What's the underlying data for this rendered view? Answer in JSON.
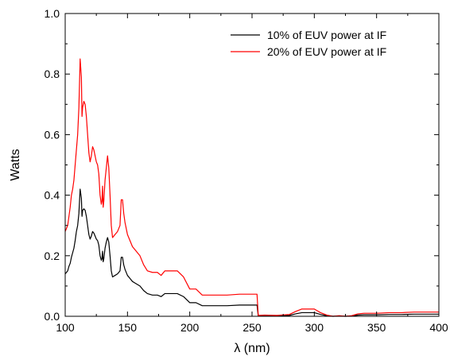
{
  "chart_data": {
    "type": "line",
    "xlabel": "λ (nm)",
    "ylabel": "Watts",
    "xlim": [
      100,
      400
    ],
    "ylim": [
      0.0,
      1.0
    ],
    "x_ticks": [
      100,
      150,
      200,
      250,
      300,
      350,
      400
    ],
    "y_ticks": [
      0.0,
      0.2,
      0.4,
      0.6,
      0.8,
      1.0
    ],
    "x_tick_labels": [
      "100",
      "150",
      "200",
      "250",
      "300",
      "350",
      "400"
    ],
    "y_tick_labels": [
      "0.0",
      "0.2",
      "0.4",
      "0.6",
      "0.8",
      "1.0"
    ],
    "grid": false,
    "legend_position": "top-right",
    "series": [
      {
        "name": "10% of EUV power at IF",
        "color": "#000000",
        "points": [
          [
            100,
            0.14
          ],
          [
            101,
            0.145
          ],
          [
            102,
            0.15
          ],
          [
            103,
            0.165
          ],
          [
            104,
            0.175
          ],
          [
            105,
            0.195
          ],
          [
            106,
            0.21
          ],
          [
            107,
            0.225
          ],
          [
            108,
            0.25
          ],
          [
            109,
            0.28
          ],
          [
            110,
            0.3
          ],
          [
            111,
            0.34
          ],
          [
            112,
            0.42
          ],
          [
            113,
            0.39
          ],
          [
            113.5,
            0.33
          ],
          [
            114,
            0.35
          ],
          [
            115,
            0.355
          ],
          [
            116,
            0.35
          ],
          [
            117,
            0.33
          ],
          [
            118,
            0.3
          ],
          [
            119,
            0.27
          ],
          [
            120,
            0.255
          ],
          [
            121,
            0.265
          ],
          [
            122,
            0.28
          ],
          [
            123,
            0.275
          ],
          [
            124,
            0.265
          ],
          [
            125,
            0.255
          ],
          [
            126,
            0.25
          ],
          [
            127,
            0.235
          ],
          [
            128,
            0.2
          ],
          [
            129,
            0.185
          ],
          [
            129.5,
            0.19
          ],
          [
            130,
            0.215
          ],
          [
            130.5,
            0.18
          ],
          [
            131,
            0.19
          ],
          [
            132,
            0.225
          ],
          [
            133,
            0.245
          ],
          [
            134,
            0.26
          ],
          [
            135,
            0.245
          ],
          [
            136,
            0.2
          ],
          [
            137,
            0.15
          ],
          [
            138,
            0.13
          ],
          [
            140,
            0.135
          ],
          [
            142,
            0.14
          ],
          [
            144,
            0.15
          ],
          [
            145,
            0.195
          ],
          [
            146,
            0.195
          ],
          [
            147,
            0.17
          ],
          [
            148,
            0.155
          ],
          [
            150,
            0.135
          ],
          [
            152,
            0.125
          ],
          [
            154,
            0.115
          ],
          [
            156,
            0.11
          ],
          [
            158,
            0.105
          ],
          [
            160,
            0.1
          ],
          [
            163,
            0.085
          ],
          [
            166,
            0.075
          ],
          [
            170,
            0.07
          ],
          [
            174,
            0.07
          ],
          [
            177,
            0.065
          ],
          [
            180,
            0.075
          ],
          [
            185,
            0.075
          ],
          [
            190,
            0.075
          ],
          [
            195,
            0.065
          ],
          [
            200,
            0.045
          ],
          [
            205,
            0.045
          ],
          [
            210,
            0.035
          ],
          [
            220,
            0.035
          ],
          [
            230,
            0.035
          ],
          [
            240,
            0.037
          ],
          [
            254,
            0.037
          ],
          [
            255,
            0.001
          ],
          [
            260,
            0.002
          ],
          [
            270,
            0.001
          ],
          [
            280,
            0.003
          ],
          [
            285,
            0.008
          ],
          [
            290,
            0.012
          ],
          [
            295,
            0.012
          ],
          [
            300,
            0.012
          ],
          [
            305,
            0.006
          ],
          [
            310,
            0.002
          ],
          [
            315,
            0.0
          ],
          [
            320,
            0.001
          ],
          [
            325,
            0.0
          ],
          [
            330,
            0.001
          ],
          [
            335,
            0.004
          ],
          [
            340,
            0.005
          ],
          [
            350,
            0.005
          ],
          [
            360,
            0.006
          ],
          [
            370,
            0.006
          ],
          [
            380,
            0.007
          ],
          [
            390,
            0.007
          ],
          [
            400,
            0.007
          ]
        ]
      },
      {
        "name": "20% of EUV power at IF",
        "color": "#ff0000",
        "points": [
          [
            100,
            0.28
          ],
          [
            101,
            0.29
          ],
          [
            102,
            0.3
          ],
          [
            103,
            0.33
          ],
          [
            104,
            0.36
          ],
          [
            105,
            0.4
          ],
          [
            106,
            0.42
          ],
          [
            107,
            0.45
          ],
          [
            108,
            0.5
          ],
          [
            109,
            0.55
          ],
          [
            110,
            0.6
          ],
          [
            111,
            0.69
          ],
          [
            112,
            0.85
          ],
          [
            113,
            0.79
          ],
          [
            113.5,
            0.66
          ],
          [
            114,
            0.69
          ],
          [
            115,
            0.71
          ],
          [
            116,
            0.7
          ],
          [
            117,
            0.66
          ],
          [
            118,
            0.6
          ],
          [
            119,
            0.54
          ],
          [
            120,
            0.51
          ],
          [
            121,
            0.53
          ],
          [
            122,
            0.56
          ],
          [
            123,
            0.55
          ],
          [
            124,
            0.53
          ],
          [
            125,
            0.51
          ],
          [
            126,
            0.5
          ],
          [
            127,
            0.47
          ],
          [
            128,
            0.4
          ],
          [
            129,
            0.37
          ],
          [
            129.5,
            0.38
          ],
          [
            130,
            0.43
          ],
          [
            130.5,
            0.36
          ],
          [
            131,
            0.38
          ],
          [
            132,
            0.45
          ],
          [
            133,
            0.49
          ],
          [
            134,
            0.53
          ],
          [
            135,
            0.49
          ],
          [
            136,
            0.4
          ],
          [
            137,
            0.3
          ],
          [
            138,
            0.26
          ],
          [
            140,
            0.27
          ],
          [
            142,
            0.28
          ],
          [
            144,
            0.3
          ],
          [
            145,
            0.385
          ],
          [
            146,
            0.385
          ],
          [
            147,
            0.34
          ],
          [
            148,
            0.31
          ],
          [
            150,
            0.27
          ],
          [
            152,
            0.25
          ],
          [
            154,
            0.23
          ],
          [
            156,
            0.22
          ],
          [
            158,
            0.21
          ],
          [
            160,
            0.2
          ],
          [
            163,
            0.17
          ],
          [
            166,
            0.15
          ],
          [
            170,
            0.145
          ],
          [
            174,
            0.145
          ],
          [
            177,
            0.135
          ],
          [
            180,
            0.15
          ],
          [
            185,
            0.15
          ],
          [
            190,
            0.15
          ],
          [
            195,
            0.13
          ],
          [
            200,
            0.09
          ],
          [
            205,
            0.09
          ],
          [
            210,
            0.07
          ],
          [
            220,
            0.07
          ],
          [
            230,
            0.07
          ],
          [
            240,
            0.073
          ],
          [
            254,
            0.073
          ],
          [
            255,
            0.003
          ],
          [
            260,
            0.004
          ],
          [
            270,
            0.003
          ],
          [
            280,
            0.006
          ],
          [
            285,
            0.016
          ],
          [
            290,
            0.024
          ],
          [
            295,
            0.024
          ],
          [
            300,
            0.024
          ],
          [
            305,
            0.012
          ],
          [
            310,
            0.004
          ],
          [
            315,
            0.0
          ],
          [
            320,
            0.002
          ],
          [
            325,
            0.0
          ],
          [
            330,
            0.002
          ],
          [
            335,
            0.008
          ],
          [
            340,
            0.01
          ],
          [
            350,
            0.01
          ],
          [
            360,
            0.012
          ],
          [
            370,
            0.012
          ],
          [
            380,
            0.014
          ],
          [
            390,
            0.014
          ],
          [
            400,
            0.014
          ]
        ]
      }
    ]
  }
}
